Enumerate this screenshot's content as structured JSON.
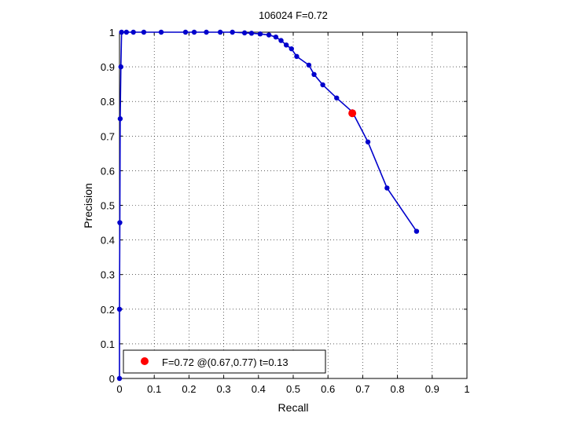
{
  "chart_data": {
    "type": "line",
    "title": "106024 F=0.72",
    "xlabel": "Recall",
    "ylabel": "Precision",
    "xlim": [
      0,
      1
    ],
    "ylim": [
      0,
      1
    ],
    "grid": true,
    "legend_position": "bottom-left",
    "x_ticks": [
      "0",
      "0.1",
      "0.2",
      "0.3",
      "0.4",
      "0.5",
      "0.6",
      "0.7",
      "0.8",
      "0.9",
      "1"
    ],
    "y_ticks": [
      "0",
      "0.1",
      "0.2",
      "0.3",
      "0.4",
      "0.5",
      "0.6",
      "0.7",
      "0.8",
      "0.9",
      "1"
    ],
    "series": [
      {
        "color": "#0000cc",
        "points": [
          [
            0.0,
            0.0
          ],
          [
            0.0,
            0.2
          ],
          [
            0.001,
            0.45
          ],
          [
            0.002,
            0.75
          ],
          [
            0.004,
            0.9
          ],
          [
            0.006,
            1.0
          ],
          [
            0.02,
            1.0
          ],
          [
            0.04,
            1.0
          ],
          [
            0.07,
            1.0
          ],
          [
            0.12,
            1.0
          ],
          [
            0.19,
            1.0
          ],
          [
            0.215,
            1.0
          ],
          [
            0.25,
            1.0
          ],
          [
            0.29,
            1.0
          ],
          [
            0.325,
            1.0
          ],
          [
            0.36,
            0.998
          ],
          [
            0.38,
            0.997
          ],
          [
            0.405,
            0.995
          ],
          [
            0.43,
            0.992
          ],
          [
            0.45,
            0.986
          ],
          [
            0.465,
            0.976
          ],
          [
            0.48,
            0.963
          ],
          [
            0.495,
            0.952
          ],
          [
            0.51,
            0.93
          ],
          [
            0.545,
            0.905
          ],
          [
            0.56,
            0.878
          ],
          [
            0.585,
            0.848
          ],
          [
            0.625,
            0.81
          ],
          [
            0.67,
            0.77
          ],
          [
            0.715,
            0.683
          ],
          [
            0.77,
            0.55
          ],
          [
            0.855,
            0.425
          ]
        ]
      }
    ],
    "best_point": {
      "recall": 0.67,
      "precision": 0.766,
      "color": "#ff0000",
      "label": "F=0.72 @(0.67,0.77) t=0.13"
    }
  }
}
